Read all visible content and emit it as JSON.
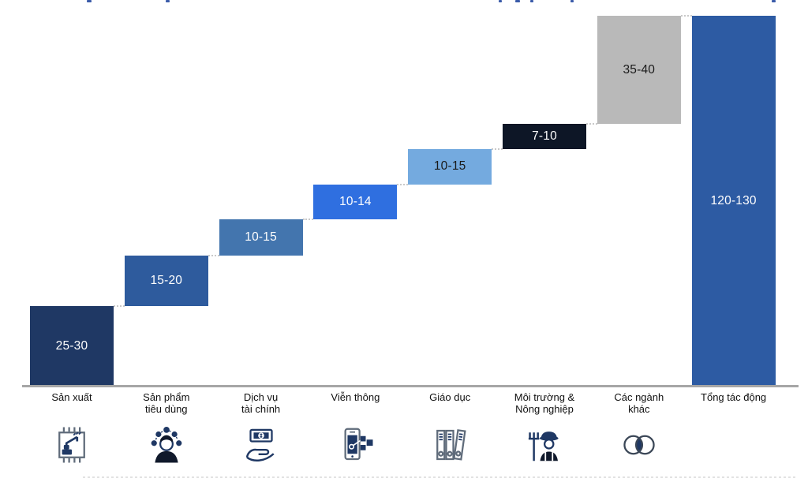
{
  "page": {
    "background": "#ffffff",
    "accent_title_color": "#3a5ba9",
    "axis_color": "#a6a6a6",
    "connector_color": "#c9c9c9",
    "icon_color": "#1f3864"
  },
  "chart_data": {
    "type": "bar",
    "subtype": "waterfall",
    "title": "",
    "xlabel": "",
    "ylabel": "",
    "ylim": [
      0,
      130
    ],
    "grid": false,
    "legend": "none",
    "connector_style": "dotted",
    "categories": [
      "Sản xuất",
      "Sản phẩm tiêu dùng",
      "Dịch vụ tài chính",
      "Viễn thông",
      "Giáo dục",
      "Môi trường & Nông nghiệp",
      "Các ngành khác",
      "Tổng tác động"
    ],
    "items": [
      {
        "label": "Sản xuất",
        "label_lines": [
          "Sản xuất"
        ],
        "range": "25-30",
        "low": 25,
        "high": 30,
        "color": "#1f3864",
        "text_color": "#ffffff",
        "icon": "manufacturing-chip",
        "is_total": false
      },
      {
        "label": "Sản phẩm tiêu dùng",
        "label_lines": [
          "Sản phẩm",
          "tiêu dùng"
        ],
        "range": "15-20",
        "low": 15,
        "high": 20,
        "color": "#2e5b9d",
        "text_color": "#ffffff",
        "icon": "consumer-person",
        "is_total": false
      },
      {
        "label": "Dịch vụ tài chính",
        "label_lines": [
          "Dịch vụ",
          "tài chính"
        ],
        "range": "10-15",
        "low": 10,
        "high": 15,
        "color": "#4375ae",
        "text_color": "#ffffff",
        "icon": "money-in-hand",
        "is_total": false
      },
      {
        "label": "Viễn thông",
        "label_lines": [
          "Viễn thông"
        ],
        "range": "10-14",
        "low": 10,
        "high": 14,
        "color": "#2f6fe0",
        "text_color": "#ffffff",
        "icon": "smartphone-network",
        "is_total": false
      },
      {
        "label": "Giáo dục",
        "label_lines": [
          "Giáo dục"
        ],
        "range": "10-15",
        "low": 10,
        "high": 15,
        "color": "#74aadf",
        "text_color": "#1a1a1a",
        "icon": "binders",
        "is_total": false
      },
      {
        "label": "Môi trường & Nông nghiệp",
        "label_lines": [
          "Môi trường &",
          "Nông nghiệp"
        ],
        "range": "7-10",
        "low": 7,
        "high": 10,
        "color": "#0d1626",
        "text_color": "#ffffff",
        "icon": "farmer",
        "is_total": false
      },
      {
        "label": "Các ngành khác",
        "label_lines": [
          "Các ngành",
          "khác"
        ],
        "range": "35-40",
        "low": 35,
        "high": 40,
        "color": "#b9b9b9",
        "text_color": "#1a1a1a",
        "icon": "venn-circles",
        "is_total": false
      },
      {
        "label": "Tổng tác động",
        "label_lines": [
          "Tổng tác động"
        ],
        "range": "120-130",
        "low": 120,
        "high": 130,
        "color": "#2d5ba3",
        "text_color": "#ffffff",
        "icon": "",
        "is_total": true
      }
    ]
  }
}
